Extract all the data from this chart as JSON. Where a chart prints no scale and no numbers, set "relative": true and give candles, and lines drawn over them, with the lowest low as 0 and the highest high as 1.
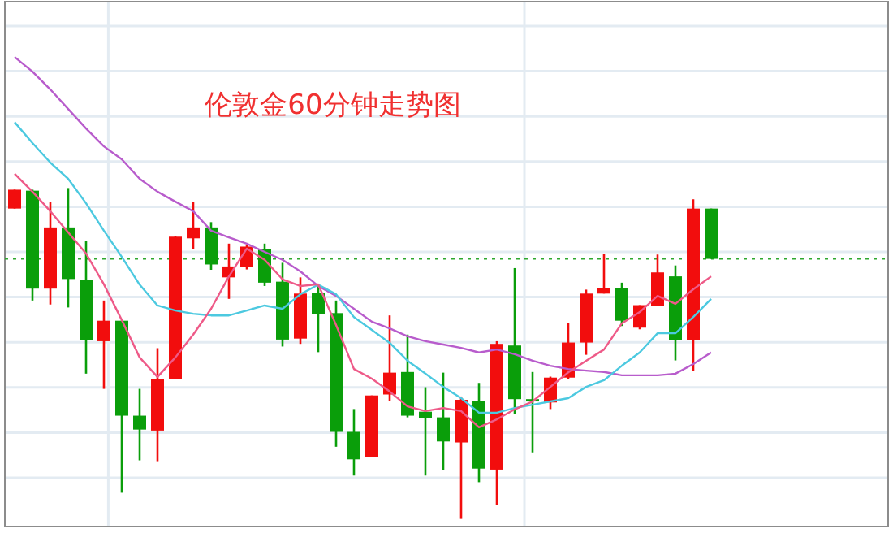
{
  "chart_data": {
    "type": "candlestick",
    "title": "伦敦金60分钟走势图",
    "relative": true,
    "grid": true,
    "categories": [
      null,
      null,
      null,
      null,
      null,
      null,
      null,
      null,
      null,
      null,
      null,
      null,
      null,
      null,
      null,
      null,
      null,
      null,
      null,
      null,
      null,
      null,
      null,
      null,
      null,
      null,
      null,
      null,
      null,
      null,
      null,
      null,
      null,
      null,
      null,
      null,
      null,
      null,
      null,
      null
    ],
    "ohlc": [
      [
        0.938,
        0.995,
        0.938,
        0.995
      ],
      [
        0.992,
        0.995,
        0.66,
        0.696
      ],
      [
        0.696,
        0.958,
        0.648,
        0.881
      ],
      [
        0.881,
        1.0,
        0.639,
        0.725
      ],
      [
        0.722,
        0.84,
        0.439,
        0.54
      ],
      [
        0.537,
        0.66,
        0.393,
        0.599
      ],
      [
        0.599,
        0.599,
        0.079,
        0.312
      ],
      [
        0.312,
        0.393,
        0.177,
        0.27
      ],
      [
        0.267,
        0.516,
        0.172,
        0.422
      ],
      [
        0.422,
        0.856,
        0.422,
        0.853
      ],
      [
        0.848,
        0.958,
        0.815,
        0.881
      ],
      [
        0.881,
        0.897,
        0.753,
        0.769
      ],
      [
        0.73,
        0.832,
        0.665,
        0.763
      ],
      [
        0.761,
        0.828,
        0.754,
        0.823
      ],
      [
        0.815,
        0.832,
        0.704,
        0.714
      ],
      [
        0.717,
        0.774,
        0.521,
        0.542
      ],
      [
        0.545,
        0.73,
        0.529,
        0.681
      ],
      [
        0.684,
        0.709,
        0.504,
        0.619
      ],
      [
        0.622,
        0.66,
        0.218,
        0.263
      ],
      [
        0.263,
        0.332,
        0.131,
        0.18
      ],
      [
        0.188,
        0.373,
        0.188,
        0.373
      ],
      [
        0.376,
        0.615,
        0.357,
        0.442
      ],
      [
        0.444,
        0.557,
        0.307,
        0.312
      ],
      [
        0.324,
        0.398,
        0.131,
        0.305
      ],
      [
        0.307,
        0.442,
        0.147,
        0.234
      ],
      [
        0.231,
        0.37,
        0.0,
        0.36
      ],
      [
        0.357,
        0.411,
        0.111,
        0.152
      ],
      [
        0.149,
        0.537,
        0.042,
        0.529
      ],
      [
        0.524,
        0.758,
        0.316,
        0.362
      ],
      [
        0.362,
        0.444,
        0.201,
        0.355
      ],
      [
        0.352,
        0.43,
        0.332,
        0.427
      ],
      [
        0.427,
        0.591,
        0.422,
        0.533
      ],
      [
        0.533,
        0.693,
        0.496,
        0.681
      ],
      [
        0.681,
        0.802,
        0.681,
        0.698
      ],
      [
        0.698,
        0.714,
        0.583,
        0.599
      ],
      [
        0.578,
        0.646,
        0.573,
        0.646
      ],
      [
        0.643,
        0.799,
        0.643,
        0.745
      ],
      [
        0.733,
        0.766,
        0.479,
        0.54
      ],
      [
        0.54,
        0.966,
        0.447,
        0.938
      ],
      [
        0.938,
        0.938,
        0.786,
        0.786
      ]
    ],
    "colors": [
      "#f20d0d",
      "#0a9e0a",
      "#f20d0d",
      "#0a9e0a",
      "#0a9e0a",
      "#f20d0d",
      "#0a9e0a",
      "#0a9e0a",
      "#f20d0d",
      "#f20d0d",
      "#f20d0d",
      "#0a9e0a",
      "#f20d0d",
      "#f20d0d",
      "#0a9e0a",
      "#0a9e0a",
      "#f20d0d",
      "#0a9e0a",
      "#0a9e0a",
      "#0a9e0a",
      "#f20d0d",
      "#f20d0d",
      "#0a9e0a",
      "#0a9e0a",
      "#0a9e0a",
      "#f20d0d",
      "#0a9e0a",
      "#f20d0d",
      "#0a9e0a",
      "#0a9e0a",
      "#f20d0d",
      "#f20d0d",
      "#f20d0d",
      "#f20d0d",
      "#0a9e0a",
      "#f20d0d",
      "#f20d0d",
      "#0a9e0a",
      "#f20d0d",
      "#0a9e0a"
    ],
    "series": [
      {
        "type": "line",
        "color": "#b85ccc",
        "values": [
          1.396,
          1.352,
          1.298,
          1.239,
          1.18,
          1.126,
          1.087,
          1.028,
          0.989,
          0.959,
          0.93,
          0.871,
          0.851,
          0.832,
          0.807,
          0.783,
          0.748,
          0.704,
          0.674,
          0.635,
          0.596,
          0.576,
          0.552,
          0.537,
          0.527,
          0.517,
          0.503,
          0.512,
          0.498,
          0.478,
          0.463,
          0.453,
          0.448,
          0.444,
          0.434,
          0.434,
          0.434,
          0.439,
          0.468,
          0.503
        ]
      },
      {
        "type": "line",
        "color": "#4cc9e0",
        "values": [
          1.199,
          1.136,
          1.077,
          1.028,
          0.954,
          0.871,
          0.792,
          0.708,
          0.645,
          0.63,
          0.62,
          0.615,
          0.615,
          0.63,
          0.645,
          0.635,
          0.679,
          0.708,
          0.679,
          0.61,
          0.571,
          0.532,
          0.478,
          0.439,
          0.399,
          0.365,
          0.321,
          0.321,
          0.335,
          0.345,
          0.355,
          0.365,
          0.399,
          0.419,
          0.463,
          0.503,
          0.561,
          0.561,
          0.61,
          0.665
        ]
      },
      {
        "type": "line",
        "color": "#ee5a88",
        "values": [
          1.043,
          0.989,
          0.93,
          0.866,
          0.802,
          0.709,
          0.601,
          0.488,
          0.429,
          0.488,
          0.557,
          0.635,
          0.733,
          0.817,
          0.783,
          0.724,
          0.704,
          0.709,
          0.586,
          0.453,
          0.424,
          0.385,
          0.34,
          0.326,
          0.335,
          0.326,
          0.277,
          0.301,
          0.331,
          0.355,
          0.399,
          0.443,
          0.478,
          0.512,
          0.591,
          0.625,
          0.674,
          0.65,
          0.694,
          0.733
        ]
      }
    ],
    "ref_lines": [
      {
        "axis": "y",
        "value": 0.786,
        "color": "#2ea82e",
        "line_style": "dotted"
      }
    ]
  }
}
